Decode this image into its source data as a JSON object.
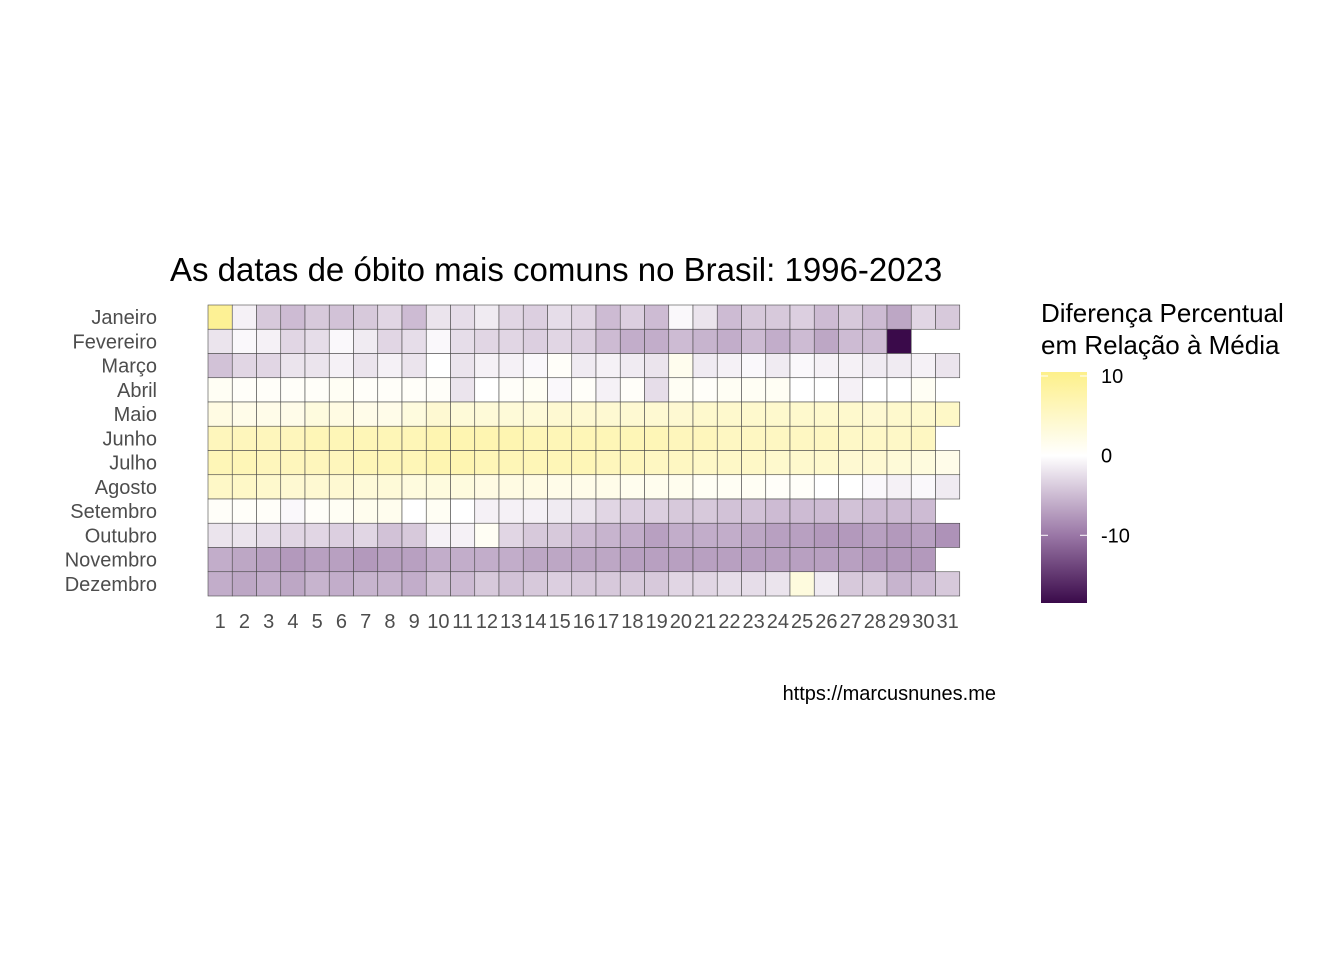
{
  "chart_data": {
    "type": "heatmap",
    "title": "As datas de óbito mais comuns no Brasil: 1996-2023",
    "caption": "https://marcusnunes.me",
    "legend": {
      "title_lines": [
        "Diferença Percentual",
        "em Relação à Média"
      ],
      "ticks": [
        10,
        0,
        -10
      ],
      "tick_labels": [
        "10",
        "0",
        "-10"
      ],
      "range": [
        -18.5,
        10.5
      ],
      "placement": "right"
    },
    "color_scale": {
      "low": "#3a0a4a",
      "mid_low": "#9a77a6",
      "mid": "#ffffff",
      "high": "#fdf08a"
    },
    "grid": false,
    "months": [
      "Janeiro",
      "Fevereiro",
      "Março",
      "Abril",
      "Maio",
      "Junho",
      "Julho",
      "Agosto",
      "Setembro",
      "Outubro",
      "Novembro",
      "Dezembro"
    ],
    "days": [
      "1",
      "2",
      "3",
      "4",
      "5",
      "6",
      "7",
      "8",
      "9",
      "10",
      "11",
      "12",
      "13",
      "14",
      "15",
      "16",
      "17",
      "18",
      "19",
      "20",
      "21",
      "22",
      "23",
      "24",
      "25",
      "26",
      "27",
      "28",
      "29",
      "30",
      "31"
    ],
    "values": [
      [
        9.5,
        -1,
        -4,
        -5,
        -4,
        -4.5,
        -4,
        -3,
        -5,
        -2,
        -2.5,
        -1.5,
        -3,
        -3.5,
        -2.5,
        -3,
        -5,
        -3.5,
        -5,
        -0.5,
        -2,
        -5,
        -4,
        -4,
        -3.5,
        -5,
        -4,
        -5,
        -6.5,
        -3,
        -4
      ],
      [
        -2,
        -0.5,
        -1,
        -3,
        -2.5,
        -0.5,
        -1.5,
        -3,
        -2.5,
        -0.5,
        -2.5,
        -3,
        -3,
        -3.5,
        -3,
        -3.5,
        -5,
        -6,
        -6,
        -5,
        -5.5,
        -6,
        -5,
        -6,
        -5,
        -6.5,
        -5,
        -5,
        -18.5,
        null,
        null
      ],
      [
        -4.5,
        -3,
        -3,
        -2,
        -2,
        -1,
        -2,
        -1,
        -2,
        0,
        -2,
        -1,
        -1,
        -0.5,
        0.5,
        -1.5,
        -1,
        -1.5,
        -2,
        1.5,
        -1.5,
        -1,
        -0.5,
        -1.5,
        -0.5,
        -1,
        -1,
        -1.5,
        -1.5,
        -1,
        -2
      ],
      [
        1,
        0.5,
        0.5,
        0.5,
        0.5,
        1,
        0.5,
        0.5,
        0.5,
        0.5,
        -2,
        0,
        0.5,
        1,
        -0.5,
        0.5,
        -1,
        0.5,
        -2.5,
        1,
        0.5,
        1,
        1,
        1,
        0,
        0,
        -1,
        0,
        0,
        1,
        null
      ],
      [
        2.5,
        2,
        2,
        2,
        3,
        2.5,
        2,
        2,
        3,
        4,
        3.5,
        3.5,
        3.5,
        3.5,
        4,
        4,
        4,
        4,
        4,
        4,
        4.5,
        4.5,
        4.5,
        4.5,
        4.5,
        4.5,
        4.5,
        4,
        4.5,
        4.5,
        5
      ],
      [
        6,
        6,
        6,
        6,
        6.5,
        6.5,
        6.5,
        6.5,
        6.5,
        7,
        7,
        7,
        7,
        6.5,
        6.5,
        6.5,
        6.5,
        6.5,
        6.5,
        6,
        6,
        5.5,
        5.5,
        5.5,
        5.5,
        5.5,
        5,
        5,
        5,
        5.5,
        null
      ],
      [
        6.5,
        6.5,
        6,
        6,
        6,
        6,
        6.5,
        6.5,
        6.5,
        7,
        7,
        6.5,
        6.5,
        6.5,
        6.5,
        6.5,
        6,
        6,
        5.5,
        5.5,
        5,
        5,
        5,
        4.5,
        4.5,
        4.5,
        4,
        4,
        3.5,
        3,
        2
      ],
      [
        5,
        5,
        4.5,
        4,
        4,
        4,
        3.5,
        3.5,
        3,
        3,
        3,
        2.5,
        2.5,
        2.5,
        2,
        2,
        2,
        1.5,
        1.5,
        1.5,
        1,
        1,
        1,
        0.5,
        0.5,
        0,
        0,
        -0.5,
        -1,
        -0.5,
        -1.5
      ],
      [
        0.5,
        0.5,
        0.5,
        -0.5,
        0.5,
        1,
        1.5,
        1.5,
        0,
        1,
        0,
        -1,
        -1,
        -1,
        -1.5,
        -2,
        -3,
        -3.5,
        -3.5,
        -4,
        -4,
        -4.5,
        -4.5,
        -5,
        -5,
        -5,
        -4.5,
        -5,
        -5,
        -5,
        null
      ],
      [
        -2,
        -2,
        -2.5,
        -3,
        -3,
        -3.5,
        -3,
        -4.5,
        -4,
        -1,
        -1,
        1,
        -3,
        -4,
        -4,
        -5,
        -5.5,
        -6,
        -7,
        -6,
        -6,
        -6,
        -6.5,
        -7,
        -7,
        -7.5,
        -7.5,
        -7,
        -7.5,
        -7,
        -8
      ],
      [
        -6,
        -6.5,
        -7,
        -7.5,
        -7,
        -7,
        -7.5,
        -7,
        -7,
        -6,
        -6,
        -6,
        -6,
        -6.5,
        -6.5,
        -6.5,
        -6.5,
        -7,
        -7,
        -7,
        -7,
        -7,
        -7,
        -7,
        -7,
        -7,
        -7,
        -7.5,
        -7.5,
        -7.5,
        null
      ],
      [
        -6,
        -6.5,
        -6,
        -6.5,
        -5.5,
        -6,
        -5.5,
        -5.5,
        -6,
        -4.5,
        -5,
        -4,
        -4.5,
        -4,
        -3.5,
        -4,
        -4,
        -4,
        -4,
        -3,
        -3,
        -2.5,
        -2.5,
        -2,
        3,
        -1.5,
        -4,
        -4,
        -5.5,
        -5,
        -4
      ]
    ]
  }
}
